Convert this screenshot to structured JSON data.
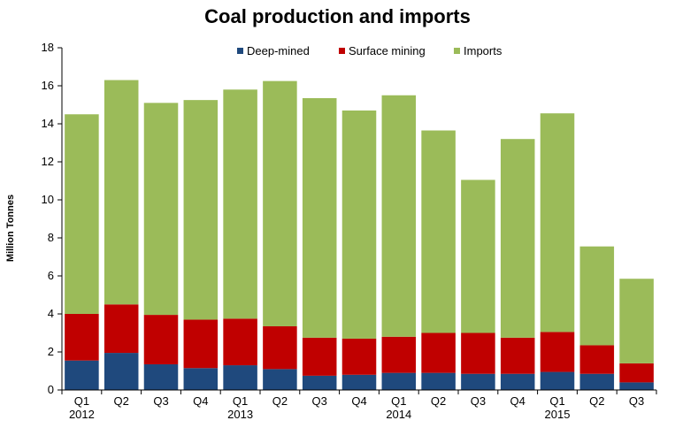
{
  "chart_data": {
    "type": "bar",
    "stacked": true,
    "title": "Coal production and imports",
    "xlabel": "",
    "ylabel": "Million Tonnes",
    "ylim": [
      0,
      18
    ],
    "yticks": [
      0,
      2,
      4,
      6,
      8,
      10,
      12,
      14,
      16,
      18
    ],
    "grid": false,
    "legend_position": "top-center",
    "categories": [
      "Q1 2012",
      "Q2",
      "Q3",
      "Q4",
      "Q1 2013",
      "Q2",
      "Q3",
      "Q4",
      "Q1 2014",
      "Q2",
      "Q3",
      "Q4",
      "Q1 2015",
      "Q2",
      "Q3"
    ],
    "category_labels": [
      [
        "Q1",
        "2012"
      ],
      [
        "Q2",
        ""
      ],
      [
        "Q3",
        ""
      ],
      [
        "Q4",
        ""
      ],
      [
        "Q1",
        "2013"
      ],
      [
        "Q2",
        ""
      ],
      [
        "Q3",
        ""
      ],
      [
        "Q4",
        ""
      ],
      [
        "Q1",
        "2014"
      ],
      [
        "Q2",
        ""
      ],
      [
        "Q3",
        ""
      ],
      [
        "Q4",
        ""
      ],
      [
        "Q1",
        "2015"
      ],
      [
        "Q2",
        ""
      ],
      [
        "Q3",
        ""
      ]
    ],
    "series": [
      {
        "name": "Deep-mined",
        "color": "#1f497d",
        "values": [
          1.55,
          1.95,
          1.35,
          1.15,
          1.3,
          1.1,
          0.75,
          0.8,
          0.9,
          0.9,
          0.85,
          0.85,
          0.95,
          0.85,
          0.4
        ]
      },
      {
        "name": "Surface mining",
        "color": "#c00000",
        "values": [
          2.45,
          2.55,
          2.6,
          2.55,
          2.45,
          2.25,
          2.0,
          1.9,
          1.9,
          2.1,
          2.15,
          1.9,
          2.1,
          1.5,
          1.0
        ]
      },
      {
        "name": "Imports",
        "color": "#9bbb59",
        "values": [
          10.5,
          11.8,
          11.15,
          11.55,
          12.05,
          12.9,
          12.6,
          12.0,
          12.7,
          10.65,
          8.05,
          10.45,
          11.5,
          5.2,
          4.45
        ]
      }
    ]
  }
}
